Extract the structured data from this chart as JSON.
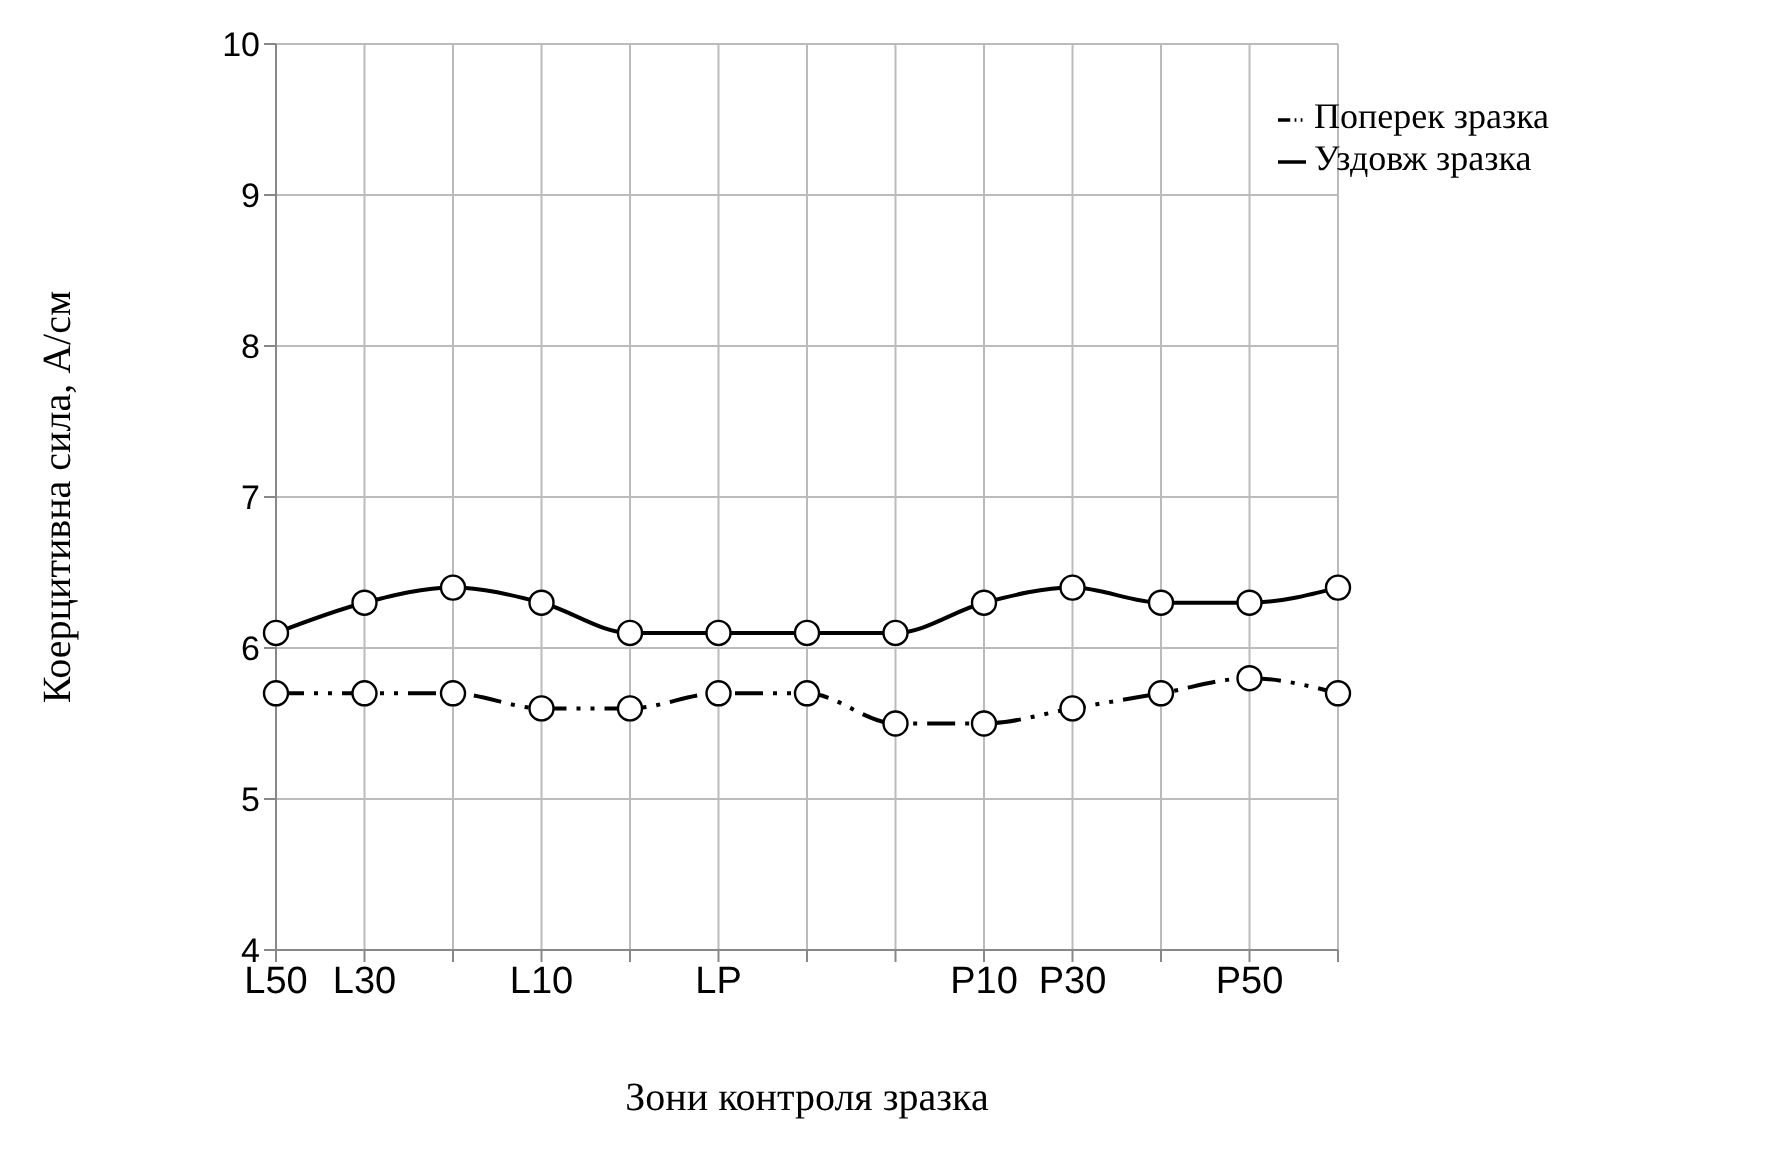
{
  "chart_data": {
    "type": "line",
    "xlabel": "Зони контроля зразка",
    "ylabel": "Коерцитивна сила, А/см",
    "categories": [
      "L50",
      "L30",
      null,
      "L10",
      null,
      "LP",
      null,
      null,
      "P10",
      "P30",
      null,
      "P50",
      null
    ],
    "series": [
      {
        "name": "Уздовж зразка",
        "color": "#000000",
        "line_style": "solid",
        "values": [
          6.1,
          6.3,
          6.4,
          6.3,
          6.1,
          6.1,
          6.1,
          6.1,
          6.3,
          6.4,
          6.3,
          6.3,
          6.4
        ]
      },
      {
        "name": "Поперек зразка",
        "color": "#000000",
        "line_style": "dashed",
        "values": [
          5.7,
          5.7,
          5.7,
          5.6,
          5.6,
          5.7,
          5.7,
          5.5,
          5.5,
          5.6,
          5.7,
          5.8,
          5.7
        ]
      }
    ],
    "ylim": [
      4,
      10
    ],
    "yticks": [
      4,
      5,
      6,
      7,
      8,
      9,
      10
    ],
    "grid": true,
    "legend": "top right",
    "marker": "circle"
  }
}
